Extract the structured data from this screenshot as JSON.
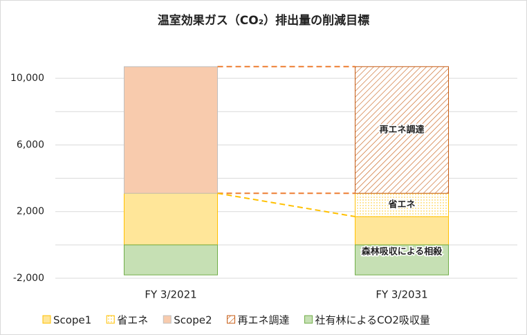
{
  "chart_data": {
    "type": "stacked_bar",
    "title": "温室効果ガス（CO₂）排出量の削減目標",
    "categories": [
      "FY 3/2021",
      "FY 3/2031"
    ],
    "series": [
      {
        "name": "Scope1",
        "color": "#ffe699",
        "stroke": "#ffc000",
        "values": [
          3100,
          1700
        ]
      },
      {
        "name": "省エネ",
        "color": "#ffc000",
        "stroke": "#ffc000",
        "pattern": "dots",
        "values": [
          null,
          1400
        ],
        "label": "省エネ"
      },
      {
        "name": "Scope2",
        "color": "#f8cbad",
        "stroke": "#bfbfbf",
        "values": [
          7600,
          null
        ]
      },
      {
        "name": "再エネ調達",
        "color": "#c55a11",
        "stroke": "#c55a11",
        "pattern": "hatch",
        "values": [
          null,
          7600
        ],
        "label": "再エネ調達"
      },
      {
        "name": "社有林によるCO2吸収量",
        "color": "#c6e0b4",
        "stroke": "#70ad47",
        "values": [
          -1800,
          -1800
        ],
        "label": "森林吸収による相殺"
      }
    ],
    "ylim": [
      -2000,
      12000
    ],
    "yticks": [
      {
        "value": -2000,
        "label": "-2,000",
        "color": "#c00000"
      },
      {
        "value": 2000,
        "label": "2,000"
      },
      {
        "value": 6000,
        "label": "6,000"
      },
      {
        "value": 10000,
        "label": "10,000"
      }
    ],
    "grid_lines": [
      -2000,
      0,
      2000,
      4000,
      6000,
      8000,
      10000
    ],
    "legend": "bottom"
  }
}
